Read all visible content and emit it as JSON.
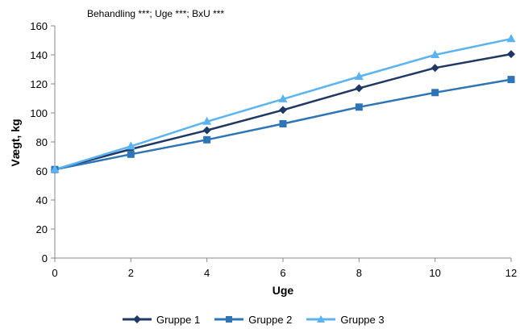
{
  "chart_data": {
    "type": "line",
    "annotation": "Behandling ***; Uge ***; BxU ***",
    "xlabel": "Uge",
    "ylabel": "Vægt, kg",
    "xlim": [
      0,
      12
    ],
    "ylim": [
      0,
      160
    ],
    "x_ticks": [
      0,
      2,
      4,
      6,
      8,
      10,
      12
    ],
    "y_ticks": [
      0,
      20,
      40,
      60,
      80,
      100,
      120,
      140,
      160
    ],
    "grid": false,
    "legend_position": "bottom",
    "x": [
      0,
      2,
      4,
      6,
      8,
      10,
      12
    ],
    "series": [
      {
        "name": "Gruppe 1",
        "values": [
          61,
          75,
          88,
          102,
          117,
          131,
          140.5
        ],
        "color": "#1f3864",
        "marker": "diamond"
      },
      {
        "name": "Gruppe 2",
        "values": [
          61,
          71.5,
          81.5,
          92.5,
          104,
          114,
          123
        ],
        "color": "#2e75b6",
        "marker": "square"
      },
      {
        "name": "Gruppe 3",
        "values": [
          61,
          77,
          94,
          109.5,
          125,
          140,
          151
        ],
        "color": "#5bb4f0",
        "marker": "triangle"
      }
    ]
  }
}
